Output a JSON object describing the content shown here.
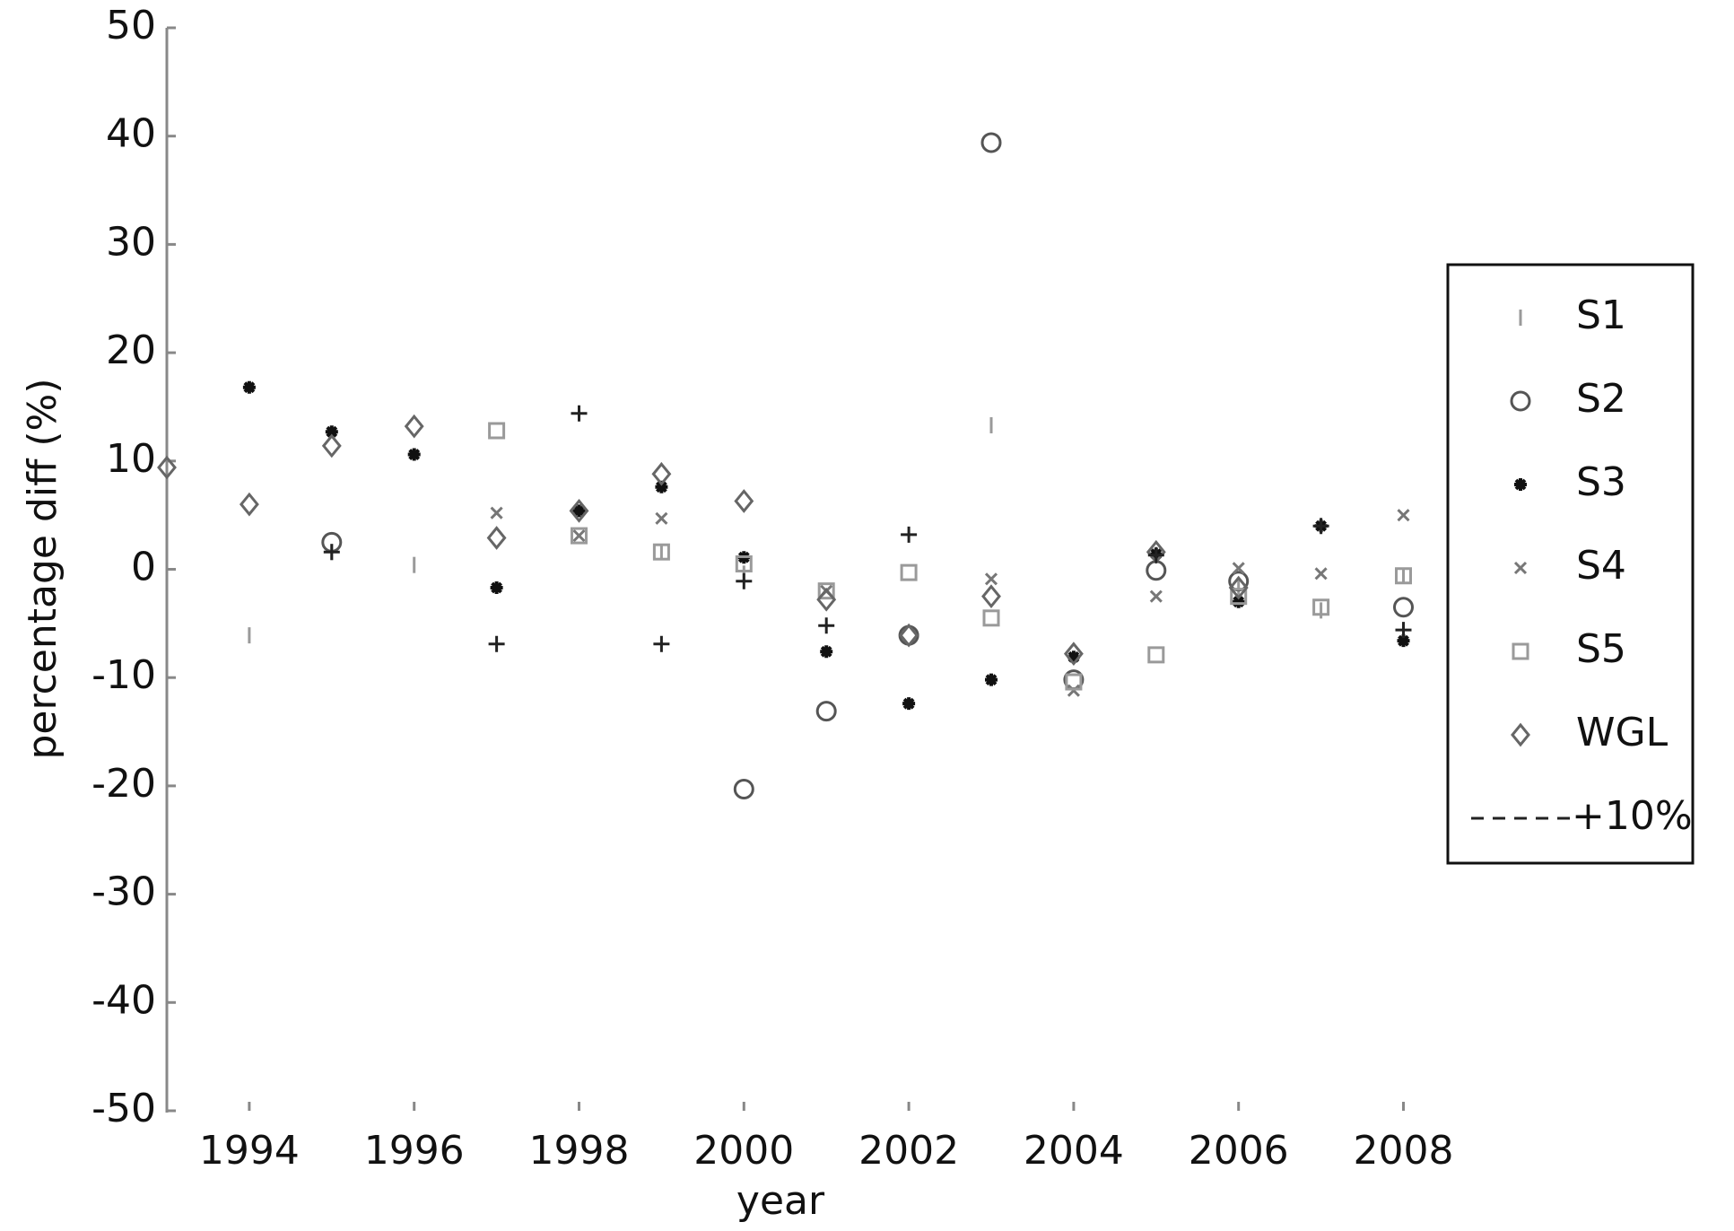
{
  "chart_data": {
    "type": "scatter",
    "xlabel": "year",
    "ylabel": "percentage diff (%)",
    "x": [
      1993,
      1994,
      1995,
      1996,
      1997,
      1998,
      1999,
      2000,
      2001,
      2002,
      2003,
      2004,
      2005,
      2006,
      2007,
      2008
    ],
    "xlim": [
      1993,
      2010
    ],
    "xticks": [
      1994,
      1996,
      1998,
      2000,
      2002,
      2004,
      2006,
      2008
    ],
    "ylim": [
      -50,
      50
    ],
    "yticks": [
      -50,
      -40,
      -30,
      -20,
      -10,
      0,
      10,
      20,
      30,
      40,
      50
    ],
    "legend": "right",
    "series": [
      {
        "name": "S1",
        "marker": "vline",
        "color": "#9a9a9a",
        "values": [
          null,
          -6.1,
          1.6,
          0.4,
          null,
          null,
          1.6,
          -0.4,
          null,
          null,
          13.3,
          null,
          null,
          -1.7,
          -3.8,
          -0.6
        ]
      },
      {
        "name": "S2",
        "marker": "circle",
        "color": "#555555",
        "values": [
          null,
          null,
          2.5,
          null,
          null,
          null,
          null,
          -20.3,
          -13.1,
          -6.1,
          39.4,
          -10.2,
          -0.1,
          -1.1,
          null,
          -3.5
        ]
      },
      {
        "name": "S3",
        "marker": "star",
        "color": "#111111",
        "values": [
          null,
          16.8,
          12.7,
          10.6,
          -1.7,
          5.4,
          7.6,
          1.1,
          -7.6,
          -12.4,
          -10.2,
          -8.1,
          1.4,
          -3.0,
          4.0,
          -6.6
        ]
      },
      {
        "name": "S4",
        "marker": "x",
        "color": "#777777",
        "values": [
          null,
          null,
          null,
          null,
          5.2,
          3.1,
          4.7,
          null,
          -2.0,
          null,
          -0.9,
          -11.2,
          -2.5,
          0.1,
          -0.4,
          5.0
        ]
      },
      {
        "name": "S5",
        "marker": "square",
        "color": "#9a9a9a",
        "values": [
          null,
          null,
          null,
          null,
          12.8,
          3.1,
          1.6,
          0.5,
          -2.0,
          -0.3,
          -4.5,
          -10.4,
          -7.9,
          -2.5,
          -3.5,
          -0.6
        ]
      },
      {
        "name": "WGL",
        "marker": "diamond",
        "color": "#666666",
        "values": [
          9.4,
          6.0,
          11.4,
          13.2,
          2.9,
          5.4,
          8.8,
          6.3,
          -2.8,
          -6.1,
          -2.5,
          -7.8,
          1.6,
          -1.7,
          null,
          null
        ]
      },
      {
        "name": "+10%",
        "marker": "plus",
        "legend_symbol": "dashed",
        "color": "#222222",
        "values": [
          null,
          null,
          1.6,
          null,
          -6.9,
          14.4,
          -6.9,
          -1.1,
          -5.2,
          3.2,
          null,
          null,
          1.3,
          null,
          4.0,
          -5.6
        ]
      }
    ]
  }
}
